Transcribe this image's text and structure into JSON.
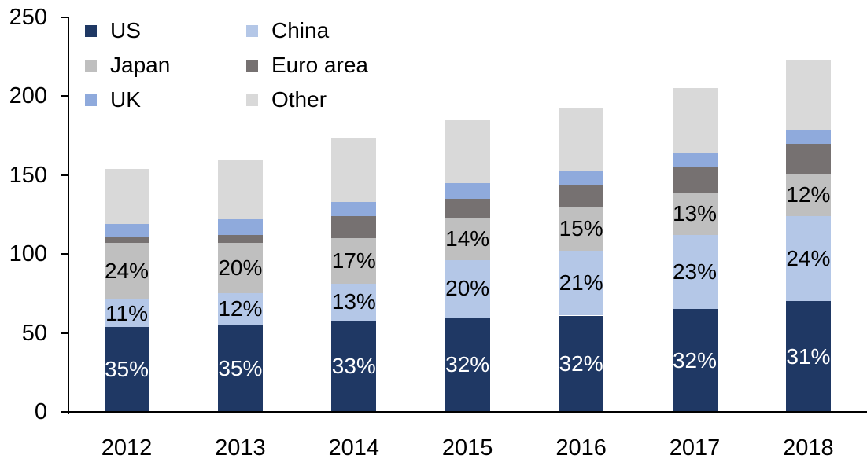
{
  "chart_data": {
    "type": "bar",
    "variant": "stacked",
    "title": "",
    "xlabel": "",
    "ylabel": "",
    "ylim": [
      0,
      250
    ],
    "yticks": [
      0,
      50,
      100,
      150,
      200,
      250
    ],
    "grid": false,
    "legend_position": "top-left",
    "axis_color": "#000000",
    "text_color": "#000000",
    "categories": [
      "2012",
      "2013",
      "2014",
      "2015",
      "2016",
      "2017",
      "2018"
    ],
    "series": [
      {
        "name": "US",
        "color": "#1F3864",
        "values": [
          54,
          55,
          58,
          60,
          61,
          65,
          70
        ],
        "labels": [
          "35%",
          "35%",
          "33%",
          "32%",
          "32%",
          "32%",
          "31%"
        ],
        "label_color": "#FFFFFF"
      },
      {
        "name": "China",
        "color": "#B4C7E7",
        "values": [
          17,
          20,
          23,
          36,
          41,
          47,
          54
        ],
        "labels": [
          "11%",
          "12%",
          "13%",
          "20%",
          "21%",
          "23%",
          "24%"
        ],
        "label_color": "#000000"
      },
      {
        "name": "Japan",
        "color": "#BFBFBF",
        "values": [
          36,
          32,
          29,
          27,
          28,
          27,
          27
        ],
        "labels": [
          "24%",
          "20%",
          "17%",
          "14%",
          "15%",
          "13%",
          "12%"
        ],
        "label_color": "#000000"
      },
      {
        "name": "Euro area",
        "color": "#767171",
        "values": [
          4,
          5,
          14,
          12,
          14,
          16,
          19
        ]
      },
      {
        "name": "UK",
        "color": "#8FAADC",
        "values": [
          8,
          10,
          9,
          10,
          9,
          9,
          9
        ]
      },
      {
        "name": "Other",
        "color": "#D9D9D9",
        "values": [
          35,
          38,
          41,
          40,
          39,
          41,
          44
        ]
      }
    ],
    "totals": [
      154,
      160,
      174,
      185,
      192,
      205,
      223
    ]
  }
}
